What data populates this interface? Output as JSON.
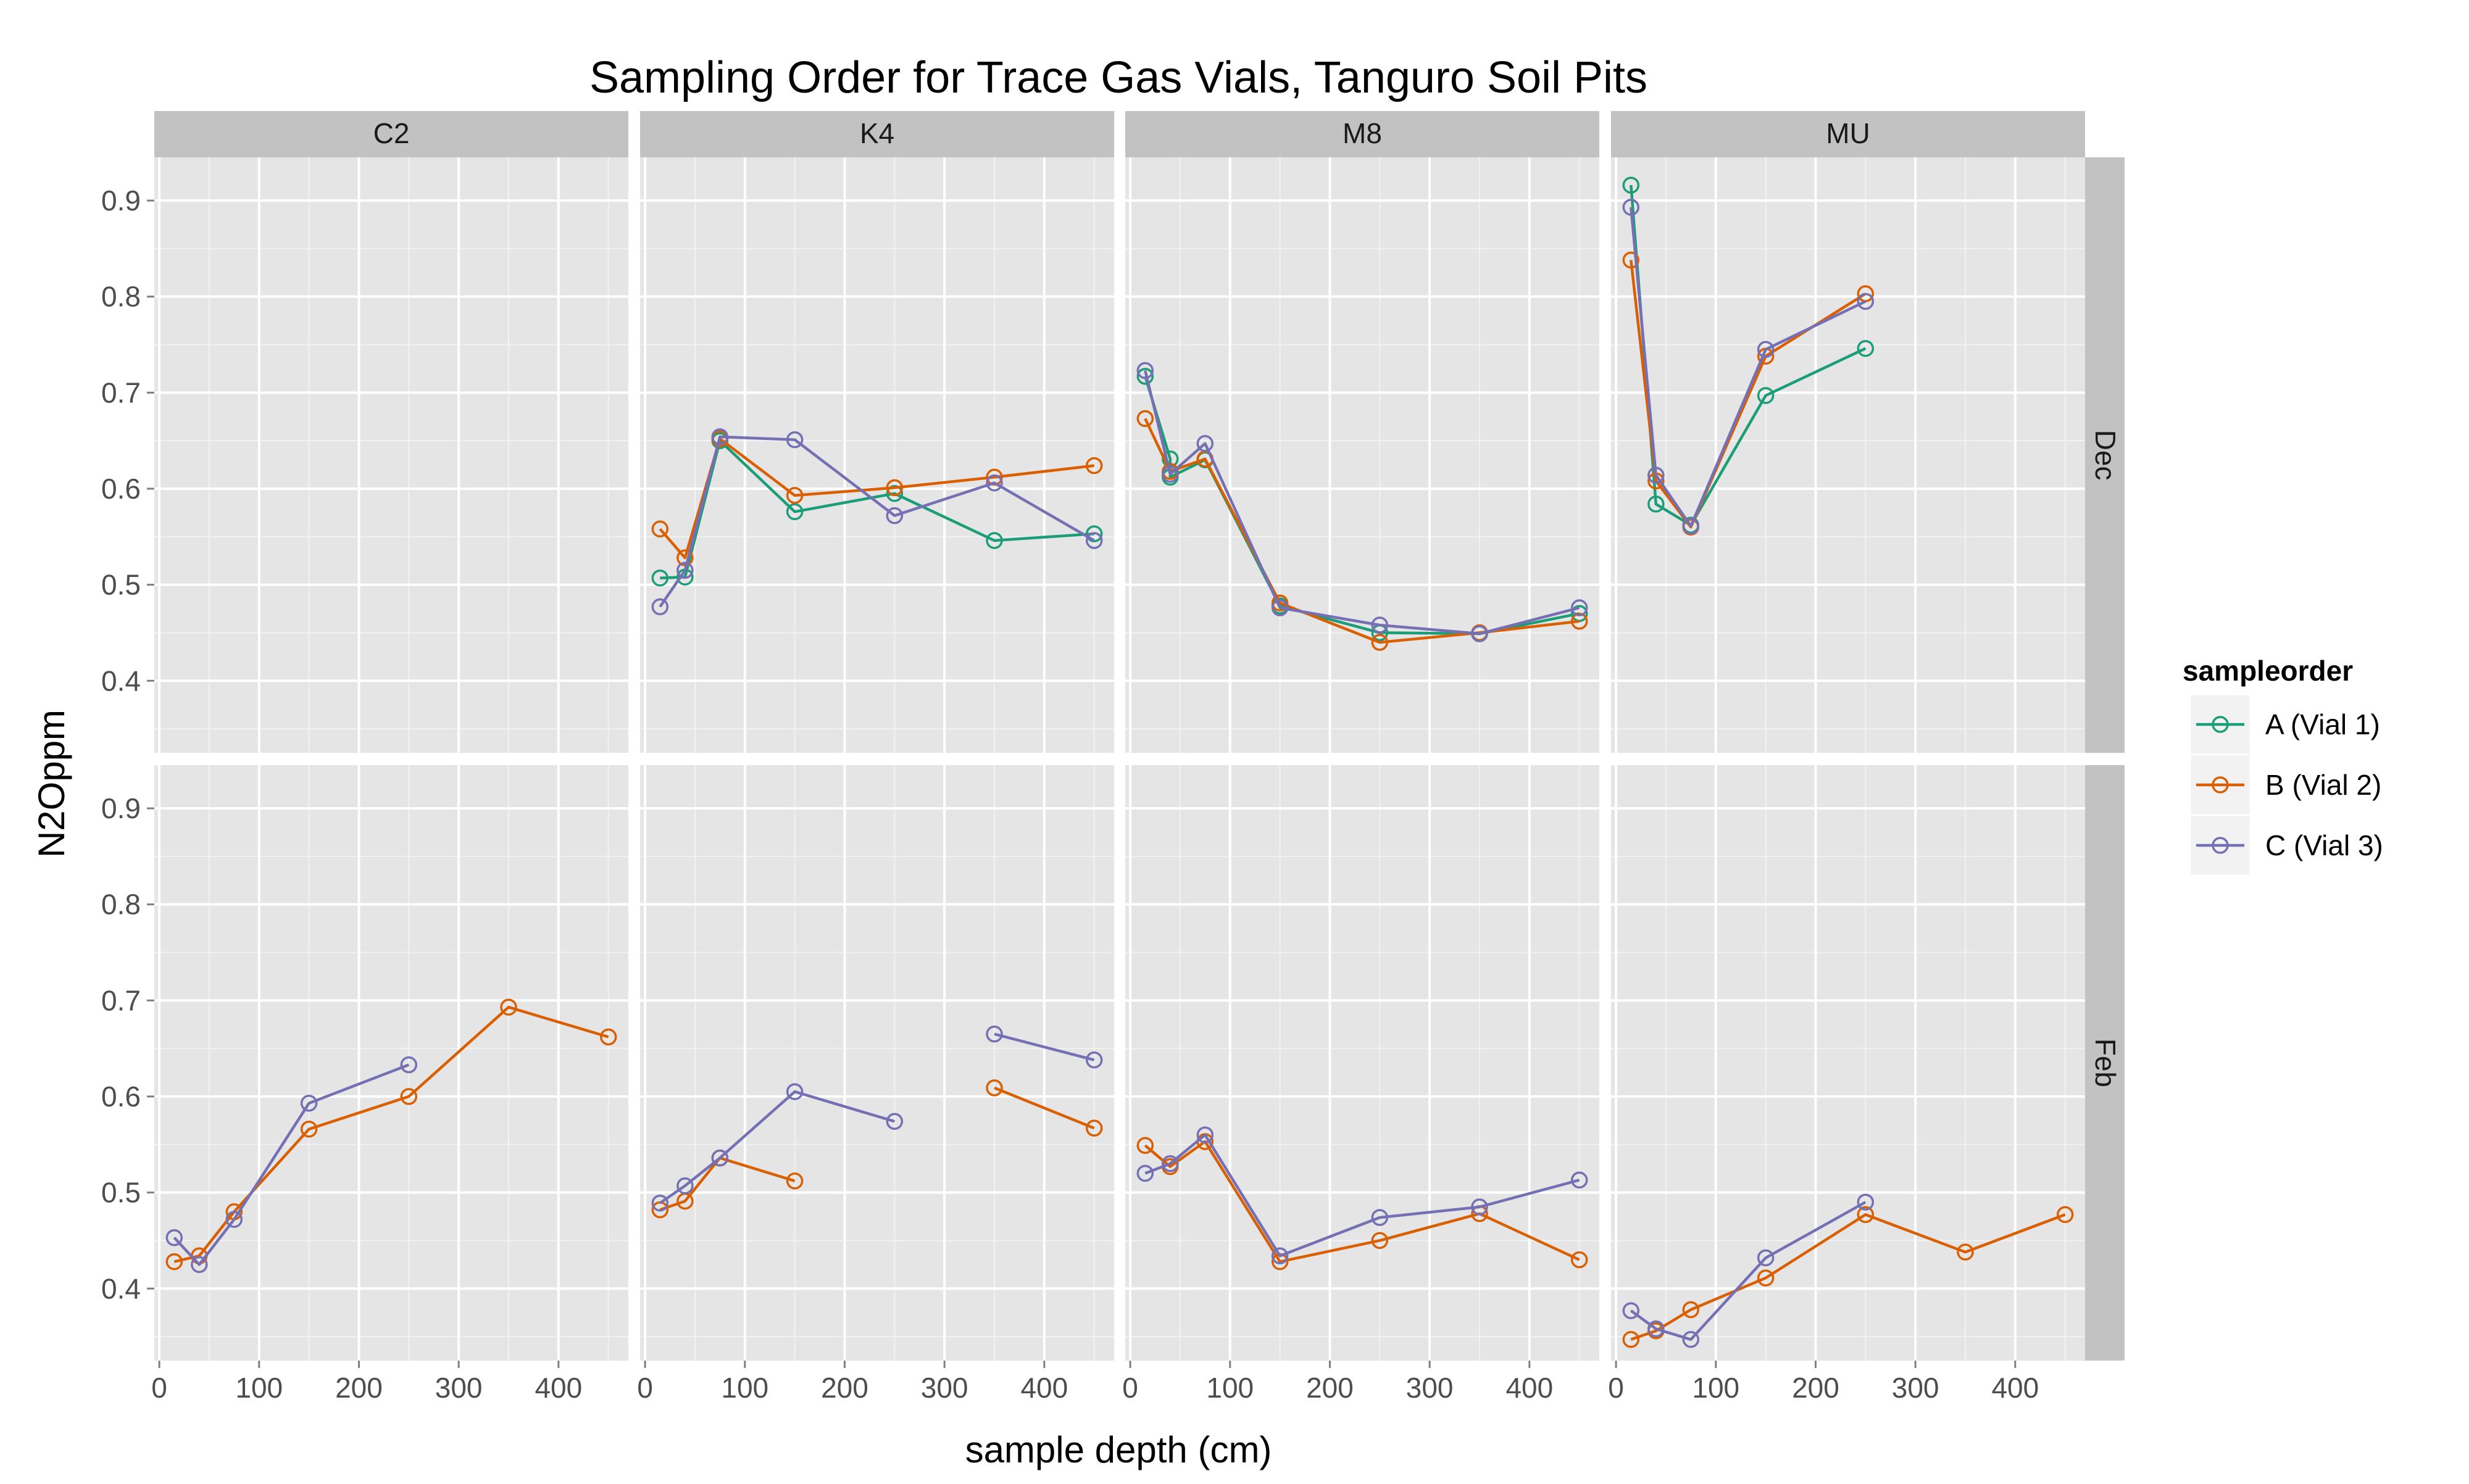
{
  "chart_data": {
    "type": "line",
    "title": "Sampling Order for Trace Gas Vials, Tanguro Soil Pits",
    "xlabel": "sample depth (cm)",
    "ylabel": "N2Oppm",
    "xlim": [
      -5,
      470
    ],
    "ylim": [
      0.325,
      0.945
    ],
    "x_ticks": [
      0,
      100,
      200,
      300,
      400
    ],
    "y_ticks": [
      0.4,
      0.5,
      0.6,
      0.7,
      0.8,
      0.9
    ],
    "columns": [
      "C2",
      "K4",
      "M8",
      "MU"
    ],
    "rows": [
      "Dec",
      "Feb"
    ],
    "grid": true,
    "legend_position": "right",
    "legend": {
      "title": "sampleorder",
      "entries": [
        "A (Vial 1)",
        "B (Vial 2)",
        "C (Vial 3)"
      ]
    },
    "colors": {
      "A (Vial 1)": "#1b9e77",
      "B (Vial 2)": "#d95f02",
      "C (Vial 3)": "#7570b3",
      "panel_bg": "#e5e5e5",
      "strip_bg": "#c2c2c2",
      "grid_major": "#ffffff",
      "grid_minor": "#f2f2f2"
    },
    "panels": [
      {
        "column": "C2",
        "row": "Dec",
        "series": []
      },
      {
        "column": "K4",
        "row": "Dec",
        "series": [
          {
            "name": "A (Vial 1)",
            "points": [
              [
                15,
                0.507
              ],
              [
                40,
                0.508
              ],
              [
                75,
                0.65
              ],
              [
                150,
                0.576
              ],
              [
                250,
                0.595
              ],
              [
                350,
                0.546
              ],
              [
                450,
                0.553
              ]
            ]
          },
          {
            "name": "B (Vial 2)",
            "points": [
              [
                15,
                0.558
              ],
              [
                40,
                0.528
              ],
              [
                75,
                0.652
              ],
              [
                150,
                0.593
              ],
              [
                250,
                0.601
              ],
              [
                350,
                0.612
              ],
              [
                450,
                0.624
              ]
            ]
          },
          {
            "name": "C (Vial 3)",
            "points": [
              [
                15,
                0.477
              ],
              [
                40,
                0.515
              ],
              [
                75,
                0.654
              ],
              [
                150,
                0.651
              ],
              [
                250,
                0.572
              ],
              [
                350,
                0.606
              ],
              [
                450,
                0.546
              ]
            ]
          }
        ]
      },
      {
        "column": "M8",
        "row": "Dec",
        "series": [
          {
            "name": "A (Vial 1)",
            "points": [
              [
                15,
                0.717
              ],
              [
                40,
                0.631
              ],
              [
                40,
                0.612
              ],
              [
                75,
                0.63
              ],
              [
                150,
                0.478
              ],
              [
                250,
                0.45
              ],
              [
                350,
                0.449
              ],
              [
                450,
                0.47
              ]
            ]
          },
          {
            "name": "B (Vial 2)",
            "points": [
              [
                15,
                0.673
              ],
              [
                40,
                0.618
              ],
              [
                75,
                0.631
              ],
              [
                150,
                0.481
              ],
              [
                250,
                0.44
              ],
              [
                350,
                0.45
              ],
              [
                450,
                0.462
              ]
            ]
          },
          {
            "name": "C (Vial 3)",
            "points": [
              [
                15,
                0.723
              ],
              [
                40,
                0.615
              ],
              [
                75,
                0.647
              ],
              [
                150,
                0.476
              ],
              [
                250,
                0.458
              ],
              [
                350,
                0.449
              ],
              [
                450,
                0.476
              ]
            ]
          }
        ]
      },
      {
        "column": "MU",
        "row": "Dec",
        "series": [
          {
            "name": "A (Vial 1)",
            "points": [
              [
                15,
                0.916
              ],
              [
                40,
                0.584
              ],
              [
                75,
                0.562
              ],
              [
                150,
                0.697
              ],
              [
                250,
                0.746
              ]
            ]
          },
          {
            "name": "B (Vial 2)",
            "points": [
              [
                15,
                0.838
              ],
              [
                40,
                0.608
              ],
              [
                75,
                0.56
              ],
              [
                150,
                0.738
              ],
              [
                250,
                0.803
              ]
            ]
          },
          {
            "name": "C (Vial 3)",
            "points": [
              [
                15,
                0.893
              ],
              [
                40,
                0.614
              ],
              [
                75,
                0.561
              ],
              [
                150,
                0.745
              ],
              [
                250,
                0.795
              ]
            ]
          }
        ]
      },
      {
        "column": "C2",
        "row": "Feb",
        "series": [
          {
            "name": "B (Vial 2)",
            "points": [
              [
                15,
                0.428
              ],
              [
                40,
                0.434
              ],
              [
                75,
                0.48
              ],
              [
                150,
                0.566
              ],
              [
                250,
                0.6
              ],
              [
                350,
                0.693
              ],
              [
                450,
                0.662
              ]
            ]
          },
          {
            "name": "C (Vial 3)",
            "points": [
              [
                15,
                0.453
              ],
              [
                40,
                0.425
              ],
              [
                75,
                0.472
              ],
              [
                150,
                0.593
              ],
              [
                250,
                0.633
              ]
            ]
          }
        ]
      },
      {
        "column": "K4",
        "row": "Feb",
        "series": [
          {
            "name": "B (Vial 2)",
            "segments": [
              [
                [
                  15,
                  0.482
                ],
                [
                  40,
                  0.491
                ],
                [
                  75,
                  0.536
                ],
                [
                  150,
                  0.512
                ]
              ],
              [
                [
                  350,
                  0.609
                ],
                [
                  450,
                  0.567
                ]
              ]
            ]
          },
          {
            "name": "C (Vial 3)",
            "segments": [
              [
                [
                  15,
                  0.489
                ],
                [
                  40,
                  0.507
                ],
                [
                  75,
                  0.536
                ],
                [
                  150,
                  0.605
                ],
                [
                  250,
                  0.574
                ]
              ],
              [
                [
                  350,
                  0.665
                ],
                [
                  450,
                  0.638
                ]
              ]
            ]
          }
        ]
      },
      {
        "column": "M8",
        "row": "Feb",
        "series": [
          {
            "name": "B (Vial 2)",
            "points": [
              [
                15,
                0.549
              ],
              [
                40,
                0.527
              ],
              [
                75,
                0.553
              ],
              [
                150,
                0.428
              ],
              [
                250,
                0.45
              ],
              [
                350,
                0.478
              ],
              [
                450,
                0.43
              ]
            ]
          },
          {
            "name": "C (Vial 3)",
            "points": [
              [
                15,
                0.52
              ],
              [
                40,
                0.53
              ],
              [
                75,
                0.56
              ],
              [
                150,
                0.434
              ],
              [
                250,
                0.474
              ],
              [
                350,
                0.485
              ],
              [
                450,
                0.513
              ]
            ]
          }
        ]
      },
      {
        "column": "MU",
        "row": "Feb",
        "series": [
          {
            "name": "B (Vial 2)",
            "points": [
              [
                15,
                0.347
              ],
              [
                40,
                0.356
              ],
              [
                75,
                0.378
              ],
              [
                150,
                0.411
              ],
              [
                250,
                0.477
              ],
              [
                350,
                0.438
              ],
              [
                450,
                0.477
              ]
            ]
          },
          {
            "name": "C (Vial 3)",
            "points": [
              [
                15,
                0.377
              ],
              [
                40,
                0.358
              ],
              [
                75,
                0.347
              ],
              [
                150,
                0.432
              ],
              [
                250,
                0.49
              ]
            ]
          }
        ]
      }
    ]
  }
}
